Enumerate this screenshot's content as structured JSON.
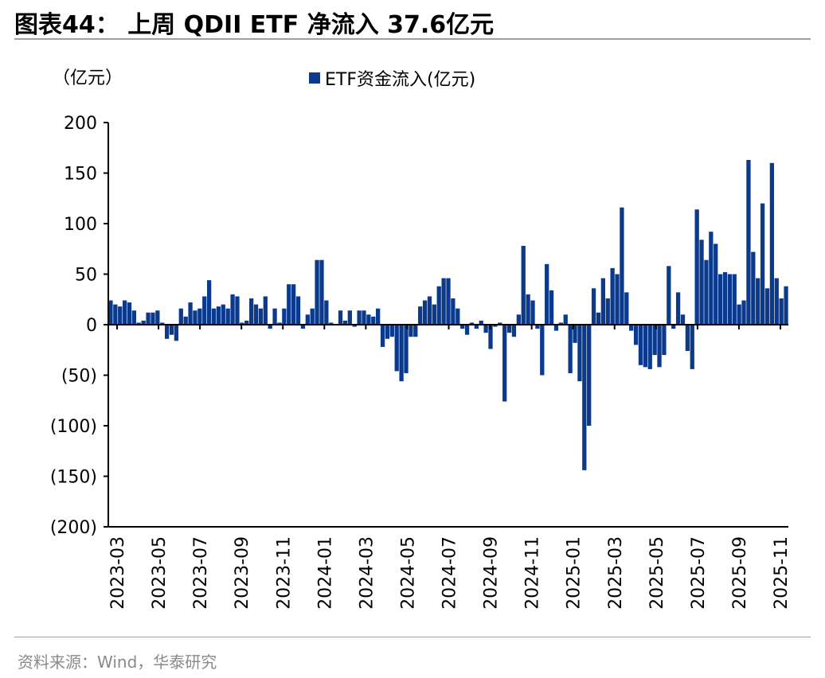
{
  "title": "图表44： 上周 QDII ETF 净流入 37.6亿元",
  "unit_label": "（亿元）",
  "legend_label": "ETF资金流入(亿元)",
  "source": "资料来源：Wind，华泰研究",
  "bar_color": "#0b3a8c",
  "chart_data": {
    "type": "bar",
    "title": "上周 QDII ETF 净流入 37.6亿元",
    "ylabel": "（亿元）",
    "xlabel": "",
    "ylim": [
      -200,
      200
    ],
    "y_ticks": [
      200,
      150,
      100,
      50,
      0,
      -50,
      -100,
      -150,
      -200
    ],
    "y_tick_labels": [
      "200",
      "150",
      "100",
      "50",
      "0",
      "(50)",
      "(100)",
      "(150)",
      "(200)"
    ],
    "x_tick_labels": [
      "2023-03",
      "2023-05",
      "2023-07",
      "2023-09",
      "2023-11",
      "2024-01",
      "2024-03",
      "2024-05",
      "2024-07",
      "2024-09",
      "2024-11",
      "2025-01",
      "2025-03",
      "2025-05",
      "2025-07",
      "2025-09",
      "2025-11"
    ],
    "series": [
      {
        "name": "ETF资金流入(亿元)",
        "values": [
          24,
          20,
          18,
          24,
          22,
          14,
          2,
          4,
          12,
          12,
          14,
          2,
          -14,
          -10,
          -16,
          16,
          8,
          22,
          14,
          16,
          28,
          44,
          16,
          18,
          20,
          16,
          30,
          28,
          2,
          4,
          26,
          20,
          16,
          28,
          -4,
          16,
          2,
          16,
          40,
          40,
          28,
          -4,
          10,
          16,
          64,
          64,
          24,
          2,
          0,
          14,
          4,
          14,
          -2,
          14,
          14,
          10,
          8,
          16,
          -22,
          -14,
          -12,
          -46,
          -56,
          -48,
          -12,
          -12,
          18,
          24,
          28,
          20,
          38,
          46,
          46,
          26,
          16,
          -4,
          -10,
          2,
          -4,
          4,
          -8,
          -24,
          -2,
          2,
          -76,
          -8,
          -12,
          10,
          78,
          30,
          24,
          -4,
          -50,
          60,
          34,
          -6,
          2,
          10,
          -48,
          -18,
          -56,
          -144,
          -100,
          36,
          12,
          46,
          26,
          56,
          50,
          116,
          32,
          -6,
          -20,
          -40,
          -42,
          -44,
          -30,
          -42,
          -30,
          58,
          -4,
          32,
          10,
          -26,
          -44,
          114,
          84,
          64,
          92,
          80,
          50,
          52,
          50,
          50,
          20,
          24,
          163,
          72,
          46,
          120,
          36,
          160,
          46,
          26,
          38
        ]
      }
    ]
  }
}
